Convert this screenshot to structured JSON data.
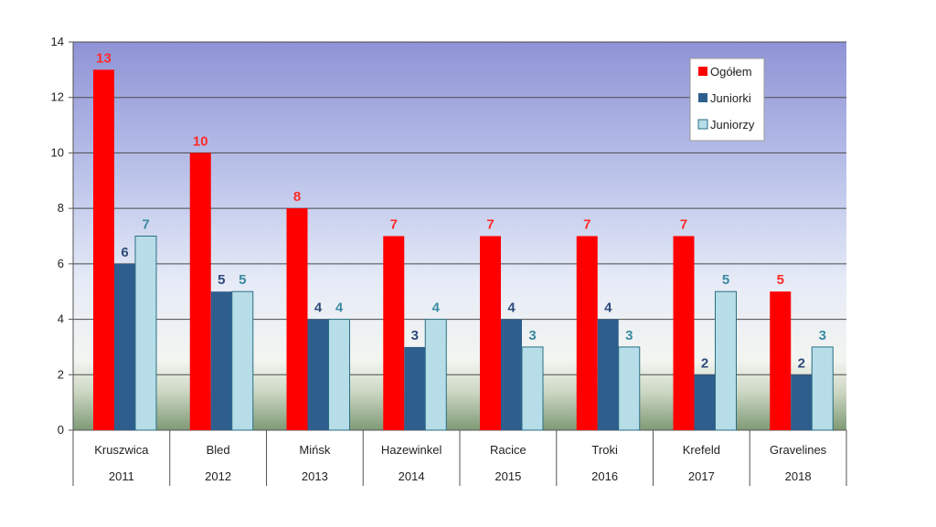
{
  "chart_data": {
    "type": "bar",
    "categories": [
      "Kruszwica",
      "Bled",
      "Mińsk",
      "Hazewinkel",
      "Racice",
      "Troki",
      "Krefeld",
      "Gravelines"
    ],
    "years": [
      "2011",
      "2012",
      "2013",
      "2014",
      "2015",
      "2016",
      "2017",
      "2018"
    ],
    "series": [
      {
        "name": "Ogółem",
        "values": [
          13,
          10,
          8,
          7,
          7,
          7,
          7,
          5
        ],
        "color": "#ff0000",
        "label_color": "#ff2a2a"
      },
      {
        "name": "Juniorki",
        "values": [
          6,
          5,
          4,
          3,
          4,
          4,
          2,
          2
        ],
        "color": "#2e5e8e",
        "label_color": "#2e4a7a"
      },
      {
        "name": "Juniorzy",
        "values": [
          7,
          5,
          4,
          4,
          3,
          3,
          5,
          3
        ],
        "color": "#b7dde8",
        "label_color": "#3a8aa0"
      }
    ],
    "ylim": [
      0,
      14
    ],
    "yticks": [
      0,
      2,
      4,
      6,
      8,
      10,
      12,
      14
    ],
    "title": "",
    "xlabel": "",
    "ylabel": "",
    "legend_position": "top-right",
    "grid": true
  }
}
